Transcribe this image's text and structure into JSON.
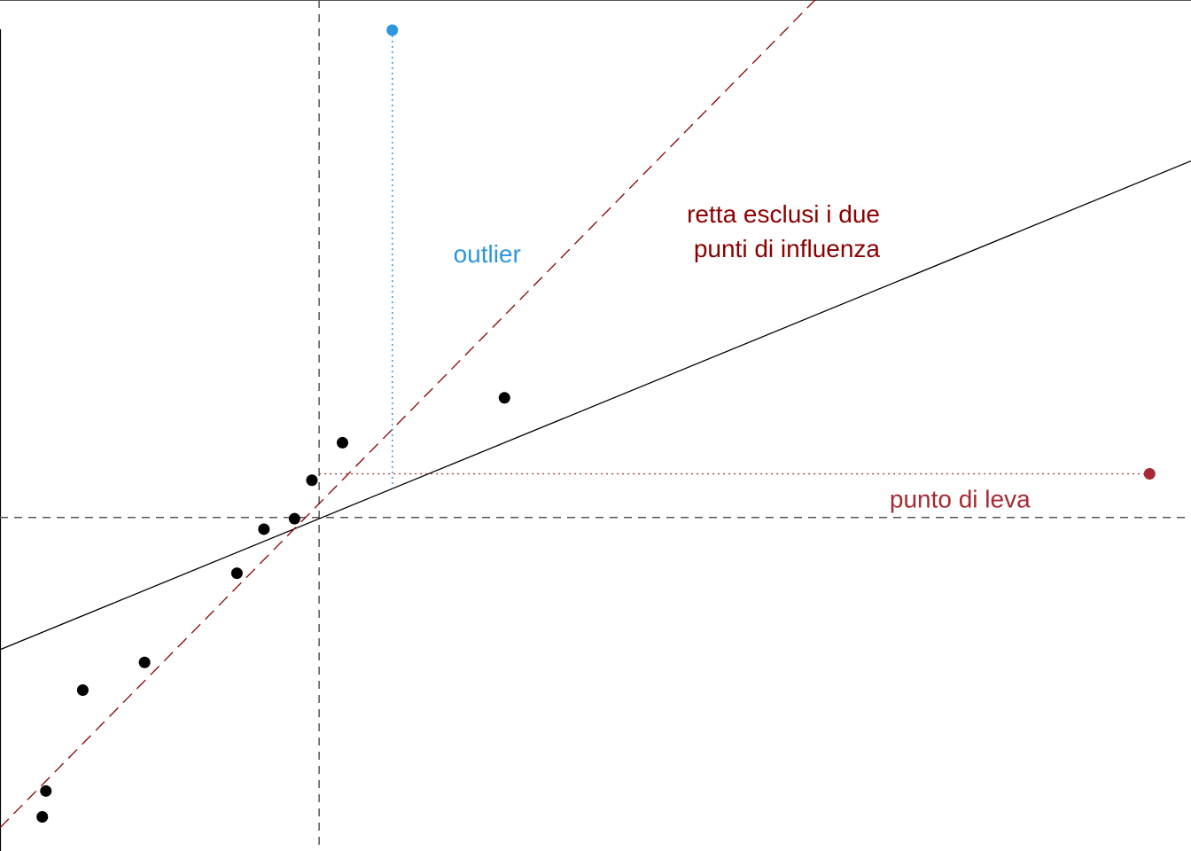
{
  "chart_data": {
    "type": "scatter",
    "title": "",
    "xlabel": "",
    "ylabel": "",
    "xlim": [
      -10.64,
      29.07
    ],
    "ylim": [
      -10.84,
      16.82
    ],
    "grid": false,
    "points": [
      {
        "x": -9.23,
        "y": -9.73
      },
      {
        "x": -9.11,
        "y": -8.89
      },
      {
        "x": -7.88,
        "y": -5.61
      },
      {
        "x": -5.82,
        "y": -4.71
      },
      {
        "x": -2.74,
        "y": -1.81
      },
      {
        "x": -1.84,
        "y": -0.38
      },
      {
        "x": -0.82,
        "y": -0.04
      },
      {
        "x": -0.24,
        "y": 1.21
      },
      {
        "x": 0.78,
        "y": 2.43
      },
      {
        "x": 6.18,
        "y": 3.89
      }
    ],
    "outlier": {
      "x": 2.44,
      "y": 15.84,
      "label": "outlier",
      "color": "#2e96dc"
    },
    "leverage_point": {
      "x": 27.69,
      "y": 1.42,
      "label": "punto di leva",
      "color": "#a52a32"
    },
    "mean_lines": {
      "x": 0.0,
      "y": 0.0
    },
    "regression_all": {
      "intercept": -0.04,
      "slope": 0.4,
      "color": "#000000"
    },
    "regression_excluding": {
      "intercept": 0.45,
      "slope": 0.99,
      "label": "retta esclusi i due punti di influenza",
      "label_lines": [
        "retta esclusi i due",
        "punti di influenza"
      ],
      "color": "#8b0000"
    }
  }
}
